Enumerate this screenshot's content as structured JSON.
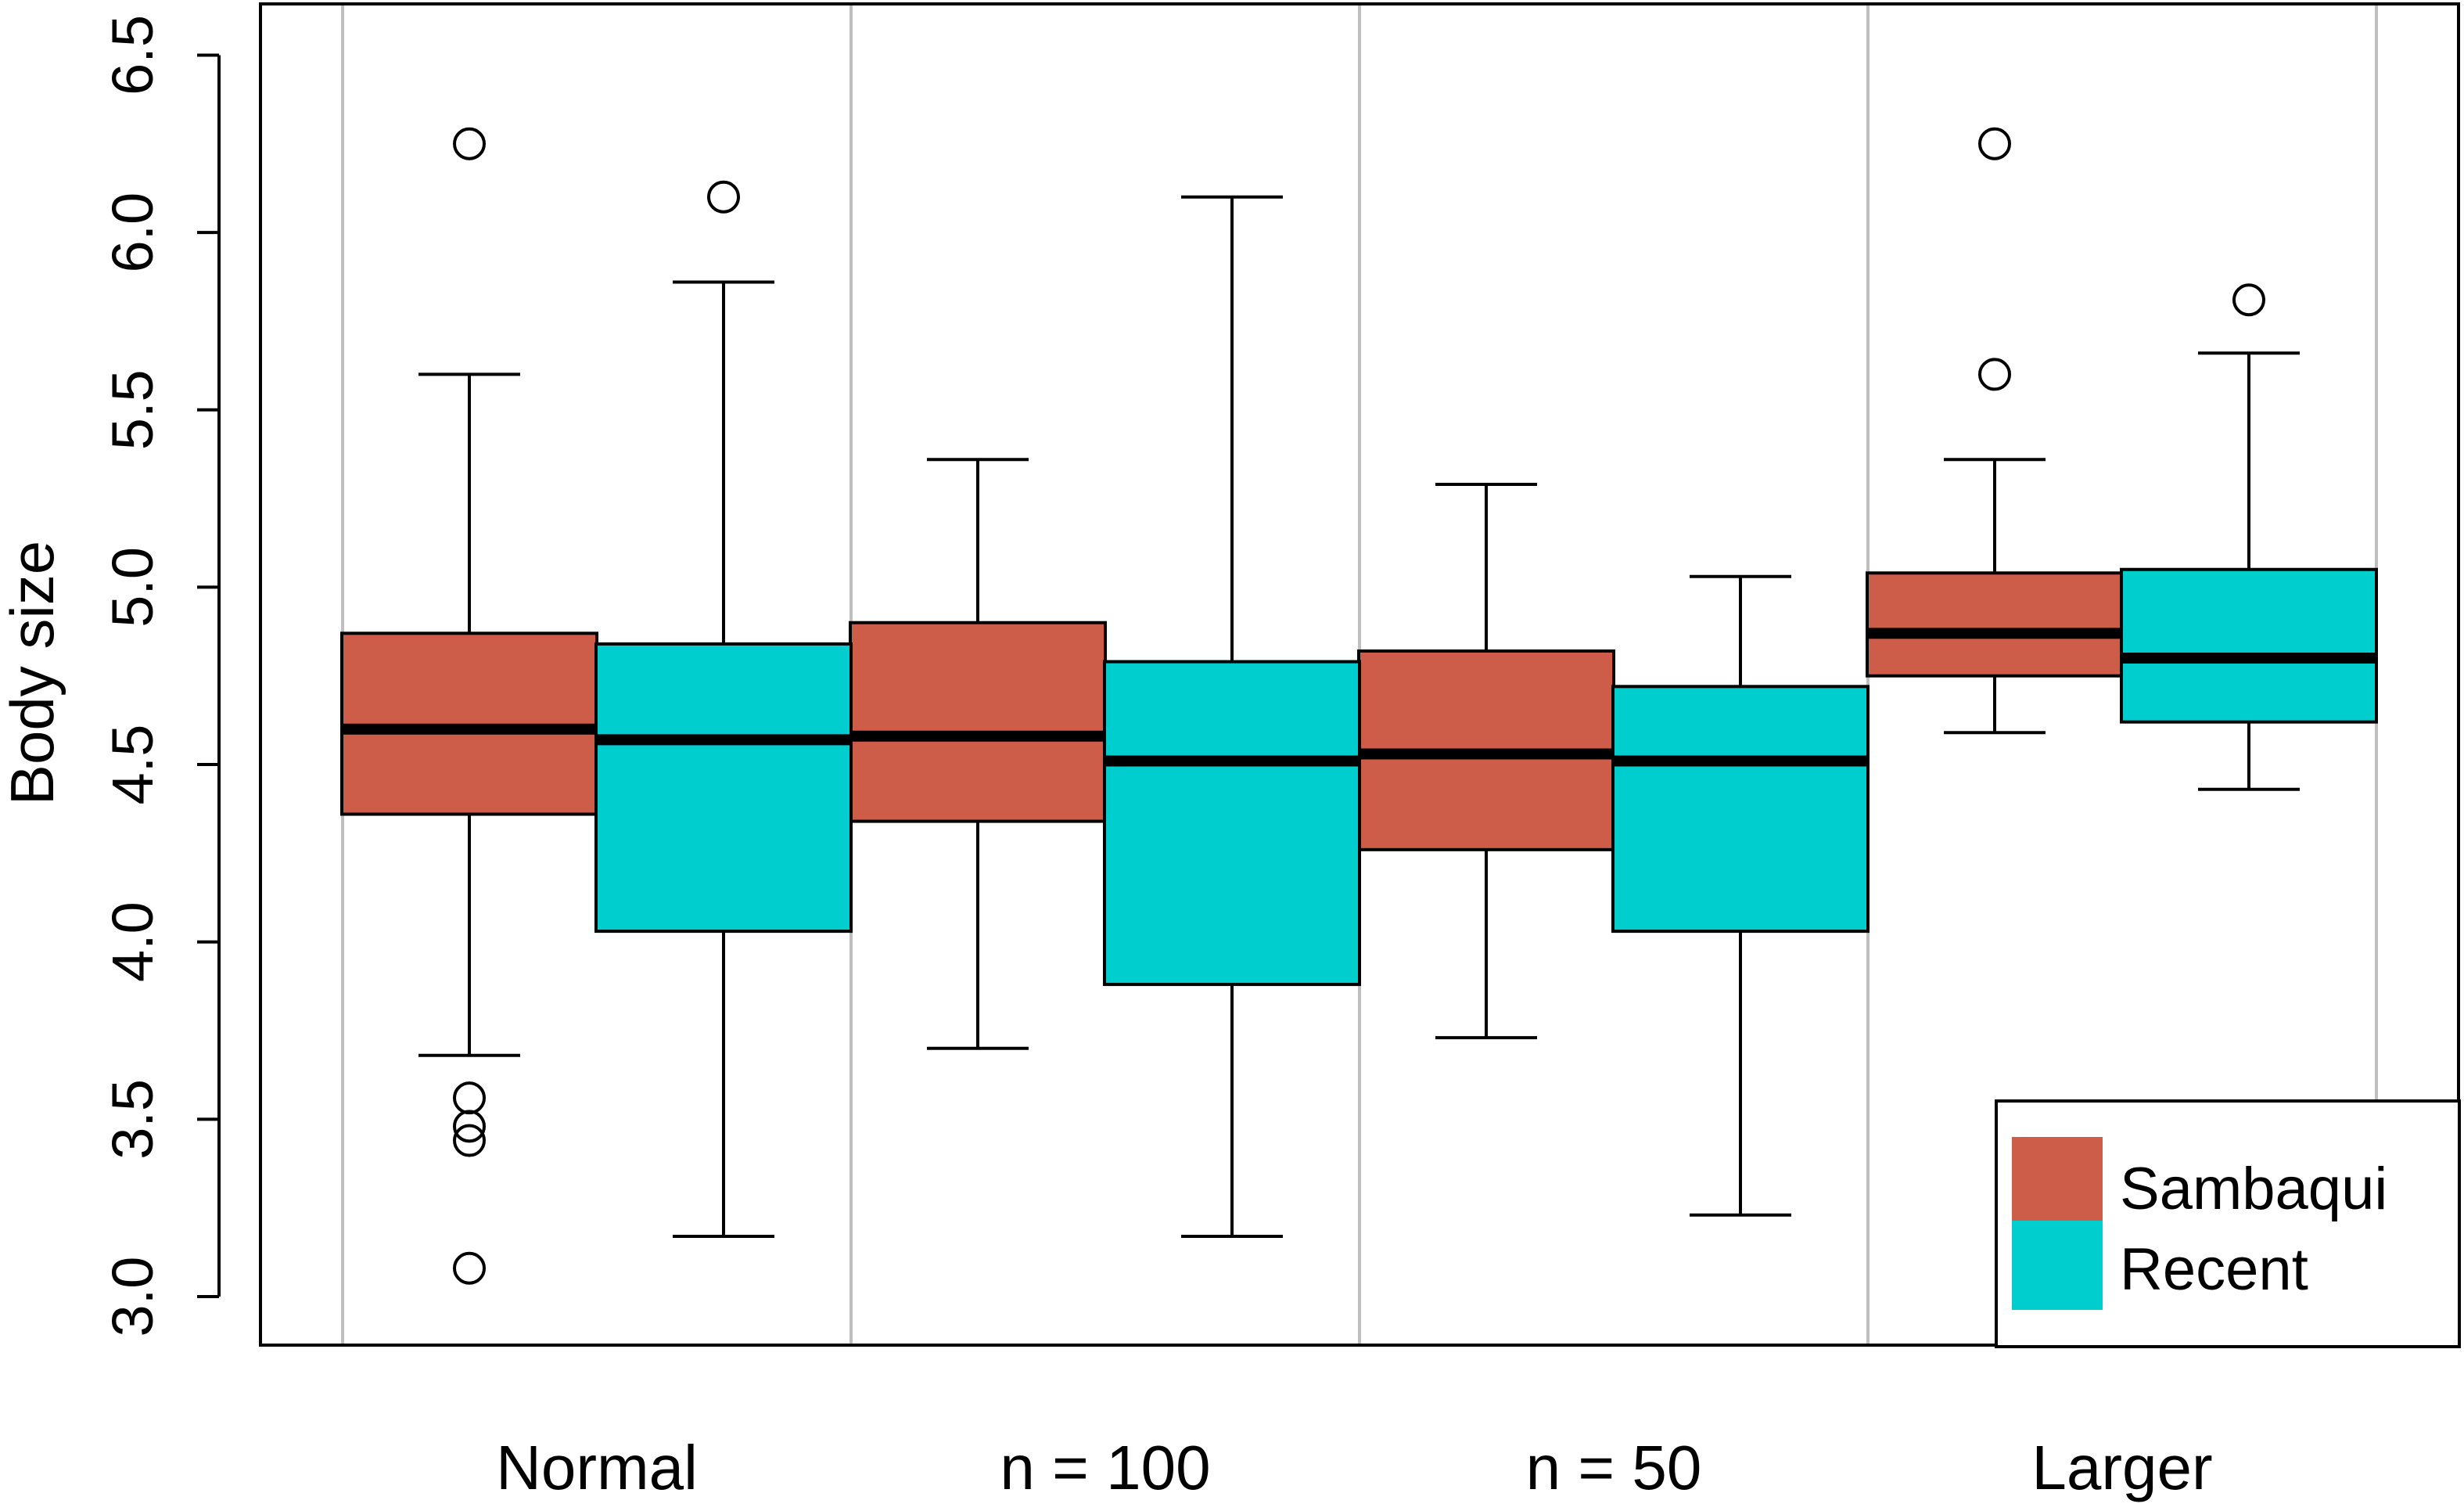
{
  "chart_data": {
    "type": "box",
    "title": "",
    "xlabel": "",
    "ylabel": "Body size",
    "ylim": [
      2.87,
      6.6
    ],
    "yticks": [
      "3.0",
      "3.5",
      "4.0",
      "4.5",
      "5.0",
      "5.5",
      "6.0",
      "6.5"
    ],
    "categories": [
      "Normal",
      "n = 100",
      "n = 50",
      "Larger"
    ],
    "grid": "vertical",
    "legend_position": "bottom-right",
    "colors": {
      "Sambaqui": "#cd5c48",
      "Recent": "#00cdcd",
      "gridline": "#bfbfbf"
    },
    "series": [
      {
        "name": "Sambaqui",
        "boxes": [
          {
            "whisker_low": 3.68,
            "q1": 4.36,
            "median": 4.6,
            "q3": 4.87,
            "whisker_high": 5.6,
            "outliers": [
              6.25,
              3.56,
              3.48,
              3.44,
              3.08
            ]
          },
          {
            "whisker_low": 3.7,
            "q1": 4.34,
            "median": 4.58,
            "q3": 4.9,
            "whisker_high": 5.36,
            "outliers": []
          },
          {
            "whisker_low": 3.73,
            "q1": 4.26,
            "median": 4.53,
            "q3": 4.82,
            "whisker_high": 5.29,
            "outliers": []
          },
          {
            "whisker_low": 4.59,
            "q1": 4.75,
            "median": 4.87,
            "q3": 5.04,
            "whisker_high": 5.36,
            "outliers": [
              6.25,
              5.6
            ]
          }
        ]
      },
      {
        "name": "Recent",
        "boxes": [
          {
            "whisker_low": 3.17,
            "q1": 4.03,
            "median": 4.57,
            "q3": 4.84,
            "whisker_high": 5.86,
            "outliers": [
              6.1
            ]
          },
          {
            "whisker_low": 3.17,
            "q1": 3.88,
            "median": 4.51,
            "q3": 4.79,
            "whisker_high": 6.1,
            "outliers": []
          },
          {
            "whisker_low": 3.23,
            "q1": 4.03,
            "median": 4.51,
            "q3": 4.72,
            "whisker_high": 5.03,
            "outliers": []
          },
          {
            "whisker_low": 4.43,
            "q1": 4.62,
            "median": 4.8,
            "q3": 5.05,
            "whisker_high": 5.66,
            "outliers": [
              5.81
            ]
          }
        ]
      }
    ]
  }
}
